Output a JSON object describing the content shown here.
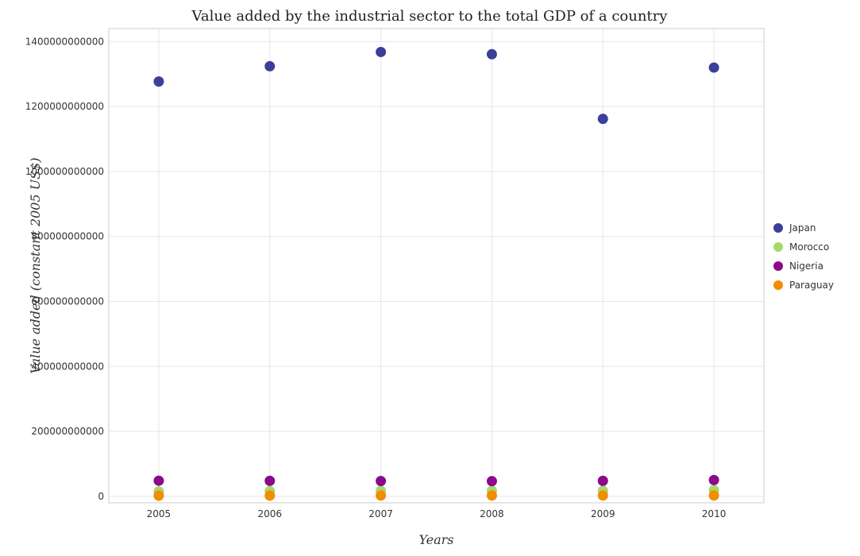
{
  "chart_data": {
    "type": "scatter",
    "title": "Value added by the industrial sector to the total GDP of a country",
    "xlabel": "Years",
    "ylabel": "Value added (constant 2005 US$)",
    "x": [
      2005,
      2006,
      2007,
      2008,
      2009,
      2010
    ],
    "x_tick_labels": [
      "2005",
      "2006",
      "2007",
      "2008",
      "2009",
      "2010"
    ],
    "y_ticks": [
      0,
      200000000000,
      400000000000,
      600000000000,
      800000000000,
      1000000000000,
      1200000000000,
      1400000000000
    ],
    "y_tick_labels": [
      "0",
      "200000000000",
      "400000000000",
      "600000000000",
      "800000000000",
      "1000000000000",
      "1200000000000",
      "1400000000000"
    ],
    "ylim": [
      -20000000000,
      1440000000000
    ],
    "grid": true,
    "legend_position": "right",
    "series": [
      {
        "name": "Japan",
        "color": "#3b3f99",
        "values": [
          1277000000000,
          1324000000000,
          1368000000000,
          1361000000000,
          1162000000000,
          1320000000000
        ]
      },
      {
        "name": "Morocco",
        "color": "#a6d96a",
        "values": [
          15000000000,
          16000000000,
          17000000000,
          17500000000,
          17500000000,
          19000000000
        ]
      },
      {
        "name": "Nigeria",
        "color": "#8b0a8b",
        "values": [
          48000000000,
          47500000000,
          47000000000,
          46500000000,
          47500000000,
          50000000000
        ]
      },
      {
        "name": "Paraguay",
        "color": "#f28c00",
        "values": [
          2000000000,
          2100000000,
          2300000000,
          2400000000,
          2400000000,
          2700000000
        ]
      }
    ]
  }
}
